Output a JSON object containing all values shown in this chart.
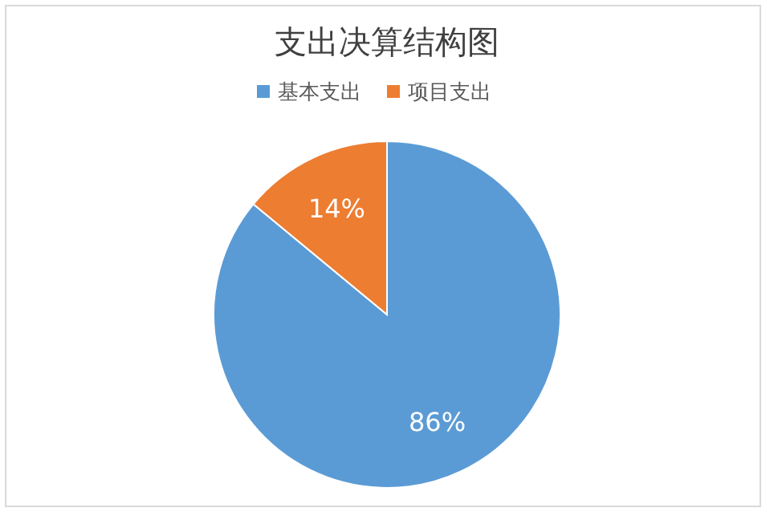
{
  "chart_data": {
    "type": "pie",
    "title": "支出决算结构图",
    "categories": [
      "基本支出",
      "项目支出"
    ],
    "values": [
      86,
      14
    ],
    "colors": [
      "#5b9bd5",
      "#ed7d31"
    ],
    "value_labels": [
      "86%",
      "14%"
    ],
    "legend": "top"
  }
}
